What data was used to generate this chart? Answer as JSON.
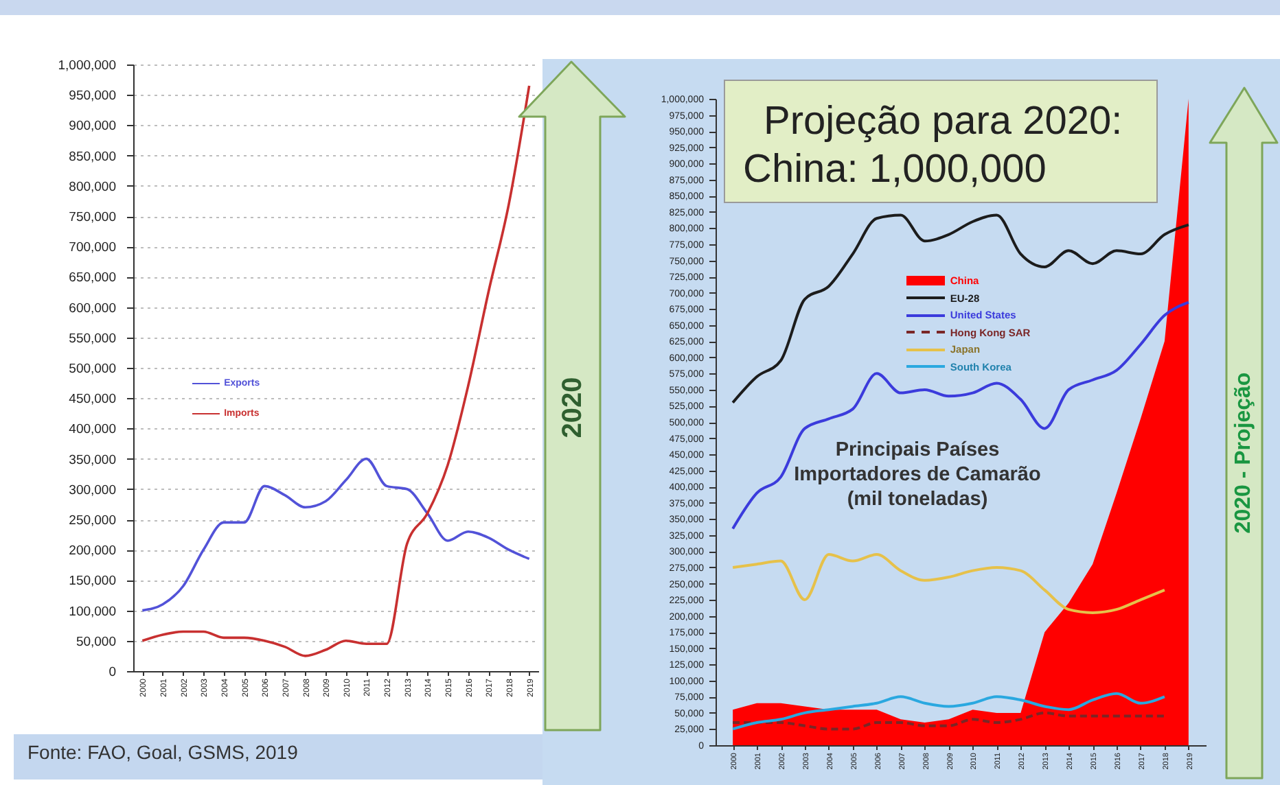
{
  "chart_data": [
    {
      "type": "line",
      "categories": [
        "2000",
        "2001",
        "2002",
        "2003",
        "2004",
        "2005",
        "2006",
        "2007",
        "2008",
        "2009",
        "2010",
        "2011",
        "2012",
        "2013",
        "2014",
        "2015",
        "2016",
        "2017",
        "2018",
        "2019"
      ],
      "ylim": [
        0,
        1000000
      ],
      "yticks": [
        0,
        {
          "value": 50000,
          "label": "50,000"
        },
        {
          "value": 100000,
          "label": "100,000"
        },
        {
          "value": 150000,
          "label": "150,000"
        },
        {
          "value": 200000,
          "label": "200,000"
        },
        {
          "value": 250000,
          "label": "250,000"
        },
        {
          "value": 300000,
          "label": "300,000"
        },
        {
          "value": 350000,
          "label": "350,000"
        },
        {
          "value": 400000,
          "label": "400,000"
        },
        {
          "value": 450000,
          "label": "450,000"
        },
        {
          "value": 500000,
          "label": "500,000"
        },
        {
          "value": 550000,
          "label": "550,000"
        },
        {
          "value": 600000,
          "label": "600,000"
        },
        {
          "value": 650000,
          "label": "650,000"
        },
        {
          "value": 700000,
          "label": "700,000"
        },
        {
          "value": 750000,
          "label": "750,000"
        },
        {
          "value": 800000,
          "label": "800,000"
        },
        {
          "value": 850000,
          "label": "850,000"
        },
        {
          "value": 900000,
          "label": "900,000"
        },
        {
          "value": 950000,
          "label": "950,000"
        },
        {
          "value": 1000000,
          "label": "1,000,000"
        }
      ],
      "grid": "y",
      "legend": "left",
      "series": [
        {
          "name": "Exports",
          "color": "#5252d8",
          "values": [
            100000,
            110000,
            140000,
            200000,
            245000,
            245000,
            305000,
            290000,
            270000,
            280000,
            315000,
            350000,
            305000,
            300000,
            260000,
            215000,
            230000,
            220000,
            200000,
            185000
          ]
        },
        {
          "name": "Imports",
          "color": "#c83030",
          "values": [
            50000,
            60000,
            65000,
            65000,
            55000,
            55000,
            50000,
            40000,
            25000,
            35000,
            50000,
            45000,
            45000,
            210000,
            260000,
            340000,
            470000,
            625000,
            770000,
            965000
          ]
        }
      ],
      "annotations": [
        "2020",
        "Fonte: FAO, Goal, GSMS, 2019"
      ]
    },
    {
      "type": "line",
      "title": "Principais Países Importadores de Camarão (mil toneladas)",
      "categories": [
        "2000",
        "2001",
        "2002",
        "2003",
        "2004",
        "2005",
        "2006",
        "2007",
        "2008",
        "2009",
        "2010",
        "2011",
        "2012",
        "2013",
        "2014",
        "2015",
        "2016",
        "2017",
        "2018",
        "2019"
      ],
      "ylim": [
        0,
        1000000
      ],
      "yticks": [
        0,
        {
          "value": 25000,
          "label": "25,000"
        },
        {
          "value": 50000,
          "label": "50,000"
        },
        {
          "value": 75000,
          "label": "75,000"
        },
        {
          "value": 100000,
          "label": "100,000"
        },
        {
          "value": 125000,
          "label": "125,000"
        },
        {
          "value": 150000,
          "label": "150,000"
        },
        {
          "value": 175000,
          "label": "175,000"
        },
        {
          "value": 200000,
          "label": "200,000"
        },
        {
          "value": 225000,
          "label": "225,000"
        },
        {
          "value": 250000,
          "label": "250,000"
        },
        {
          "value": 275000,
          "label": "275,000"
        },
        {
          "value": 300000,
          "label": "300,000"
        },
        {
          "value": 325000,
          "label": "325,000"
        },
        {
          "value": 350000,
          "label": "350,000"
        },
        {
          "value": 375000,
          "label": "375,000"
        },
        {
          "value": 400000,
          "label": "400,000"
        },
        {
          "value": 425000,
          "label": "425,000"
        },
        {
          "value": 450000,
          "label": "450,000"
        },
        {
          "value": 475000,
          "label": "475,000"
        },
        {
          "value": 500000,
          "label": "500,000"
        },
        {
          "value": 525000,
          "label": "525,000"
        },
        {
          "value": 550000,
          "label": "550,000"
        },
        {
          "value": 575000,
          "label": "575,000"
        },
        {
          "value": 600000,
          "label": "600,000"
        },
        {
          "value": 625000,
          "label": "625,000"
        },
        {
          "value": 650000,
          "label": "650,000"
        },
        {
          "value": 675000,
          "label": "675,000"
        },
        {
          "value": 700000,
          "label": "700,000"
        },
        {
          "value": 725000,
          "label": "725,000"
        },
        {
          "value": 750000,
          "label": "750,000"
        },
        {
          "value": 775000,
          "label": "775,000"
        },
        {
          "value": 800000,
          "label": "800,000"
        },
        {
          "value": 825000,
          "label": "825,000"
        },
        {
          "value": 850000,
          "label": "850,000"
        },
        {
          "value": 875000,
          "label": "875,000"
        },
        {
          "value": 900000,
          "label": "900,000"
        },
        {
          "value": 925000,
          "label": "925,000"
        },
        {
          "value": 950000,
          "label": "950,000"
        },
        {
          "value": 975000,
          "label": "975,000"
        },
        {
          "value": 1000000,
          "label": "1,000,000"
        }
      ],
      "legend": "top",
      "series": [
        {
          "name": "China",
          "type": "area",
          "color": "#ff0000",
          "values": [
            55000,
            65000,
            65000,
            60000,
            55000,
            55000,
            55000,
            40000,
            35000,
            40000,
            55000,
            50000,
            50000,
            175000,
            220000,
            280000,
            390000,
            505000,
            625000,
            1000000
          ]
        },
        {
          "name": "EU-28",
          "color": "#1c1c1c",
          "values": [
            530000,
            570000,
            595000,
            690000,
            710000,
            760000,
            815000,
            820000,
            780000,
            790000,
            810000,
            820000,
            760000,
            740000,
            765000,
            745000,
            765000,
            760000,
            790000,
            805000
          ]
        },
        {
          "name": "United States",
          "color": "#3b3bdc",
          "values": [
            335000,
            390000,
            415000,
            490000,
            505000,
            520000,
            575000,
            545000,
            550000,
            540000,
            545000,
            560000,
            535000,
            490000,
            550000,
            565000,
            580000,
            620000,
            665000,
            685000
          ]
        },
        {
          "name": "Hong Kong SAR",
          "color": "#7a2626",
          "line_style": "dashed",
          "values": [
            35000,
            35000,
            35000,
            30000,
            25000,
            25000,
            35000,
            35000,
            30000,
            30000,
            40000,
            35000,
            40000,
            50000,
            45000,
            45000,
            45000,
            45000,
            45000,
            null
          ]
        },
        {
          "name": "Japan",
          "color": "#e6c14a",
          "values": [
            275000,
            280000,
            285000,
            225000,
            295000,
            285000,
            295000,
            270000,
            255000,
            260000,
            270000,
            275000,
            270000,
            240000,
            210000,
            205000,
            210000,
            225000,
            240000,
            null
          ]
        },
        {
          "name": "South Korea",
          "color": "#2aa8e0",
          "values": [
            25000,
            35000,
            40000,
            50000,
            55000,
            60000,
            65000,
            75000,
            65000,
            60000,
            65000,
            75000,
            70000,
            60000,
            55000,
            70000,
            80000,
            65000,
            75000,
            null
          ]
        }
      ],
      "annotations": [
        "Projeção para 2020:",
        "China: 1,000,000",
        "2020 - Projeção"
      ]
    }
  ]
}
